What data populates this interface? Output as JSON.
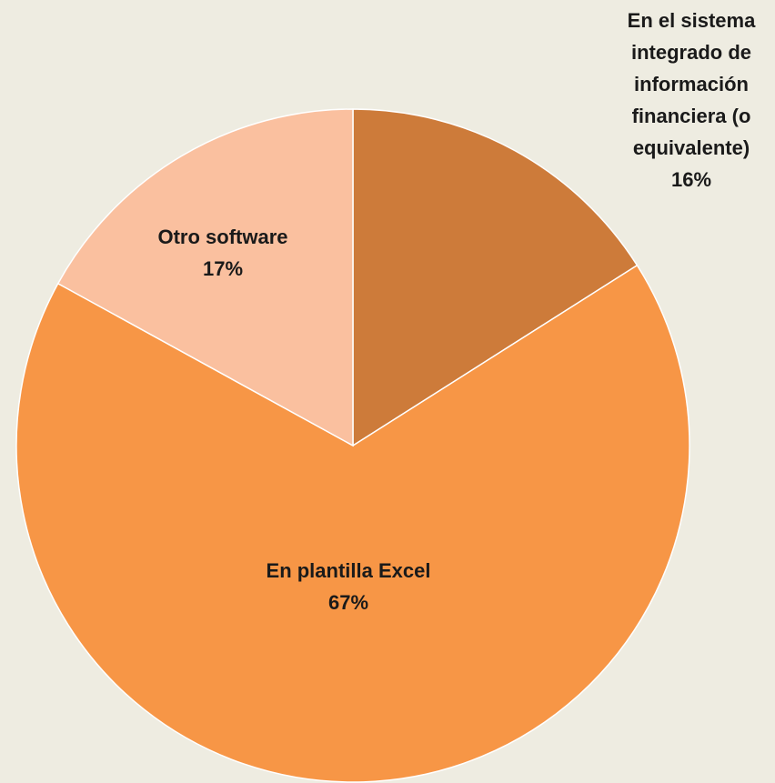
{
  "chart_data": {
    "type": "pie",
    "categories": [
      "En el sistema integrado de información financiera (o equivalente)",
      "En plantilla Excel",
      "Otro software"
    ],
    "values": [
      16,
      67,
      17
    ],
    "value_labels": [
      "16%",
      "67%",
      "17%"
    ],
    "colors": [
      "#cd7b3a",
      "#f79646",
      "#fac09f"
    ]
  }
}
